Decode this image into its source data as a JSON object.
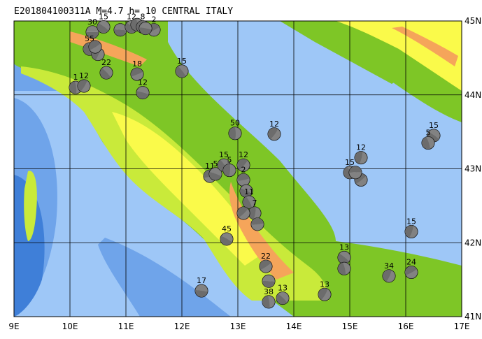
{
  "title": "E201804100311A  M=4.7  h= 10  CENTRAL ITALY",
  "x_ticks": [
    "9E",
    "10E",
    "11E",
    "12E",
    "13E",
    "14E",
    "15E",
    "16E",
    "17E"
  ],
  "y_ticks": [
    "45N",
    "44N",
    "43N",
    "42N",
    "41N"
  ],
  "colors": {
    "sea_deep": "#3f7fd8",
    "sea_mid": "#6fa4ea",
    "sea_shallow": "#9ec7f7",
    "land_low": "#7ec626",
    "land_mid": "#c9ea3a",
    "land_high": "#fafa4a",
    "land_peak": "#f5a55a",
    "beachball": "#6c6c6c"
  },
  "mechanisms": [
    {
      "lon": 10.4,
      "lat": 44.85,
      "label": "30"
    },
    {
      "lon": 10.6,
      "lat": 44.92,
      "label": "15"
    },
    {
      "lon": 10.35,
      "lat": 44.62,
      "label": "55"
    },
    {
      "lon": 10.5,
      "lat": 44.55,
      "label": ""
    },
    {
      "lon": 10.45,
      "lat": 44.65,
      "label": ""
    },
    {
      "lon": 10.9,
      "lat": 44.88,
      "label": ""
    },
    {
      "lon": 11.1,
      "lat": 44.92,
      "label": "12"
    },
    {
      "lon": 11.2,
      "lat": 44.95,
      "label": ""
    },
    {
      "lon": 11.3,
      "lat": 44.92,
      "label": "8"
    },
    {
      "lon": 11.5,
      "lat": 44.88,
      "label": "2"
    },
    {
      "lon": 11.35,
      "lat": 44.9,
      "label": ""
    },
    {
      "lon": 10.65,
      "lat": 44.3,
      "label": "22"
    },
    {
      "lon": 10.1,
      "lat": 44.1,
      "label": "1"
    },
    {
      "lon": 10.25,
      "lat": 44.12,
      "label": "12"
    },
    {
      "lon": 11.2,
      "lat": 44.28,
      "label": "18"
    },
    {
      "lon": 11.3,
      "lat": 44.03,
      "label": "12"
    },
    {
      "lon": 12.0,
      "lat": 44.32,
      "label": "15"
    },
    {
      "lon": 12.95,
      "lat": 43.48,
      "label": "50"
    },
    {
      "lon": 13.65,
      "lat": 43.47,
      "label": "12"
    },
    {
      "lon": 12.5,
      "lat": 42.9,
      "label": "11"
    },
    {
      "lon": 12.6,
      "lat": 42.93,
      "label": "5"
    },
    {
      "lon": 12.75,
      "lat": 43.05,
      "label": "15"
    },
    {
      "lon": 12.85,
      "lat": 42.98,
      "label": "5"
    },
    {
      "lon": 13.1,
      "lat": 43.05,
      "label": "12"
    },
    {
      "lon": 13.1,
      "lat": 42.85,
      "label": "2"
    },
    {
      "lon": 13.15,
      "lat": 42.7,
      "label": ""
    },
    {
      "lon": 13.2,
      "lat": 42.55,
      "label": "11"
    },
    {
      "lon": 13.3,
      "lat": 42.4,
      "label": "7"
    },
    {
      "lon": 13.1,
      "lat": 42.4,
      "label": ""
    },
    {
      "lon": 13.35,
      "lat": 42.25,
      "label": ""
    },
    {
      "lon": 12.8,
      "lat": 42.05,
      "label": "45"
    },
    {
      "lon": 15.0,
      "lat": 42.95,
      "label": "15"
    },
    {
      "lon": 15.2,
      "lat": 43.15,
      "label": "12"
    },
    {
      "lon": 15.2,
      "lat": 42.85,
      "label": ""
    },
    {
      "lon": 15.1,
      "lat": 42.95,
      "label": ""
    },
    {
      "lon": 16.5,
      "lat": 43.45,
      "label": "15"
    },
    {
      "lon": 16.4,
      "lat": 43.35,
      "label": "5"
    },
    {
      "lon": 16.1,
      "lat": 42.15,
      "label": "15"
    },
    {
      "lon": 13.5,
      "lat": 41.68,
      "label": "22"
    },
    {
      "lon": 13.55,
      "lat": 41.48,
      "label": ""
    },
    {
      "lon": 14.9,
      "lat": 41.8,
      "label": "13"
    },
    {
      "lon": 14.9,
      "lat": 41.65,
      "label": ""
    },
    {
      "lon": 15.7,
      "lat": 41.55,
      "label": "34"
    },
    {
      "lon": 16.1,
      "lat": 41.6,
      "label": "24"
    },
    {
      "lon": 12.35,
      "lat": 41.35,
      "label": "17"
    },
    {
      "lon": 13.8,
      "lat": 41.25,
      "label": "13"
    },
    {
      "lon": 13.55,
      "lat": 41.2,
      "label": "38"
    },
    {
      "lon": 14.55,
      "lat": 41.3,
      "label": "13"
    }
  ]
}
